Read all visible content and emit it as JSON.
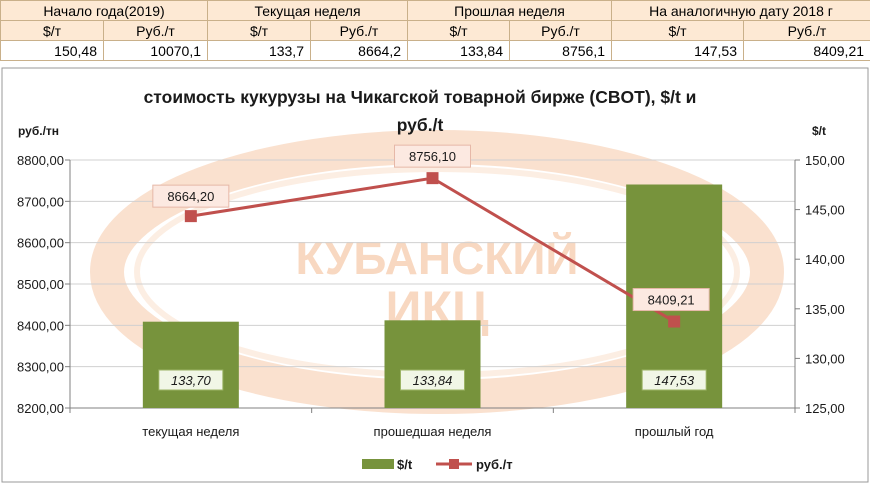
{
  "summary_table": {
    "groups": [
      "Начало года(2019)",
      "Текущая неделя",
      "Прошлая неделя",
      "На аналогичную дату 2018 г"
    ],
    "subheaders": [
      "$/т",
      "Руб./т",
      "$/т",
      "Руб./т",
      "$/т",
      "Руб./т",
      "$/т",
      "Руб./т"
    ],
    "values": [
      "150,48",
      "10070,1",
      "133,7",
      "8664,2",
      "133,84",
      "8756,1",
      "147,53",
      "8409,21"
    ]
  },
  "chart_data": {
    "type": "bar",
    "title_line1": "стоимость кукурузы на Чикагской товарной бирже (CBOT), $/t и",
    "title_line2": "руб./t",
    "ylabel_left": "руб./тн",
    "ylabel_right": "$/t",
    "categories": [
      "текущая неделя",
      "прошедшая неделя",
      "прошлый год"
    ],
    "series": [
      {
        "name": "$/t",
        "type": "bar",
        "axis": "right",
        "color": "#77933c",
        "values": [
          133.7,
          133.84,
          147.53
        ],
        "labels": [
          "133,70",
          "133,84",
          "147,53"
        ]
      },
      {
        "name": "руб./т",
        "type": "line",
        "axis": "left",
        "color": "#c0504d",
        "values": [
          8664.2,
          8756.1,
          8409.21
        ],
        "labels": [
          "8664,20",
          "8756,10",
          "8409,21"
        ]
      }
    ],
    "ylim_left": [
      8200,
      8800
    ],
    "yticks_left": [
      "8200,00",
      "8300,00",
      "8400,00",
      "8500,00",
      "8600,00",
      "8700,00",
      "8800,00"
    ],
    "ylim_right": [
      125,
      150
    ],
    "yticks_right": [
      "125,00",
      "130,00",
      "135,00",
      "140,00",
      "145,00",
      "150,00"
    ],
    "grid": true,
    "legend_position": "bottom",
    "watermark_text": [
      "КУБАНСКИЙ",
      "ИКЦ"
    ]
  }
}
